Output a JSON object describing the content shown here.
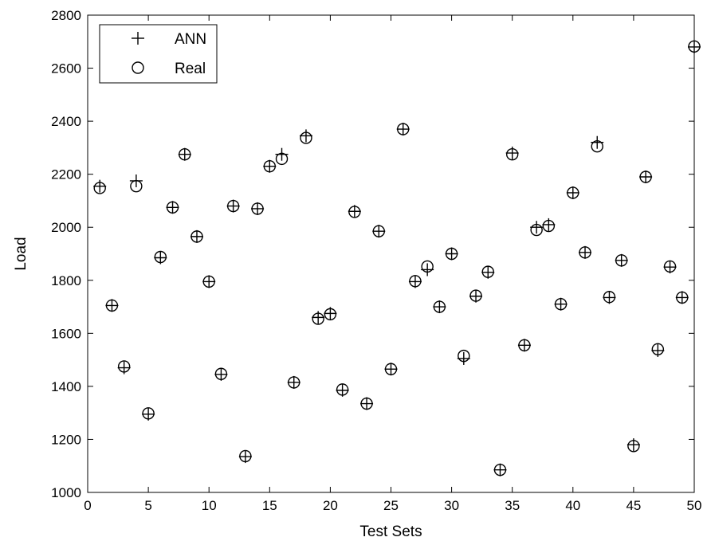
{
  "chart_data": {
    "type": "scatter",
    "xlabel": "Test Sets",
    "ylabel": "Load",
    "xlim": [
      0,
      50
    ],
    "ylim": [
      1000,
      2800
    ],
    "xticks": [
      0,
      5,
      10,
      15,
      20,
      25,
      30,
      35,
      40,
      45,
      50
    ],
    "yticks": [
      1000,
      1200,
      1400,
      1600,
      1800,
      2000,
      2200,
      2400,
      2600,
      2800
    ],
    "legend_position": "top-left",
    "grid": false,
    "series": [
      {
        "name": "ANN",
        "marker": "plus",
        "x": [
          1,
          2,
          3,
          4,
          5,
          6,
          7,
          8,
          9,
          10,
          11,
          12,
          13,
          14,
          15,
          16,
          17,
          18,
          19,
          20,
          21,
          22,
          23,
          24,
          25,
          26,
          27,
          28,
          29,
          30,
          31,
          32,
          33,
          34,
          35,
          36,
          37,
          38,
          39,
          40,
          41,
          42,
          43,
          44,
          45,
          46,
          47,
          48,
          49,
          50
        ],
        "values": [
          2155,
          1705,
          1470,
          2175,
          1295,
          1885,
          2075,
          2275,
          1965,
          1795,
          1445,
          2080,
          1135,
          2070,
          2230,
          2275,
          1415,
          2345,
          1660,
          1675,
          1385,
          2060,
          1335,
          1985,
          1465,
          2370,
          1795,
          1840,
          1700,
          1900,
          1505,
          1740,
          1830,
          1085,
          2280,
          1555,
          2000,
          2010,
          1710,
          2130,
          1905,
          2320,
          1735,
          1875,
          1180,
          2190,
          1535,
          1850,
          1735,
          2680
        ]
      },
      {
        "name": "Real",
        "marker": "circle",
        "x": [
          1,
          2,
          3,
          4,
          5,
          6,
          7,
          8,
          9,
          10,
          11,
          12,
          13,
          14,
          15,
          16,
          17,
          18,
          19,
          20,
          21,
          22,
          23,
          24,
          25,
          26,
          27,
          28,
          29,
          30,
          31,
          32,
          33,
          34,
          35,
          36,
          37,
          38,
          39,
          40,
          41,
          42,
          43,
          44,
          45,
          46,
          47,
          48,
          49,
          50
        ],
        "values": [
          2148,
          1705,
          1475,
          2155,
          1298,
          1888,
          2075,
          2275,
          1965,
          1795,
          1447,
          2080,
          1137,
          2070,
          2230,
          2258,
          1415,
          2337,
          1655,
          1672,
          1388,
          2058,
          1335,
          1985,
          1465,
          2370,
          1797,
          1852,
          1700,
          1900,
          1515,
          1742,
          1832,
          1085,
          2275,
          1555,
          1990,
          2005,
          1710,
          2130,
          1905,
          2305,
          1737,
          1875,
          1175,
          2190,
          1540,
          1852,
          1735,
          2682
        ]
      }
    ]
  }
}
